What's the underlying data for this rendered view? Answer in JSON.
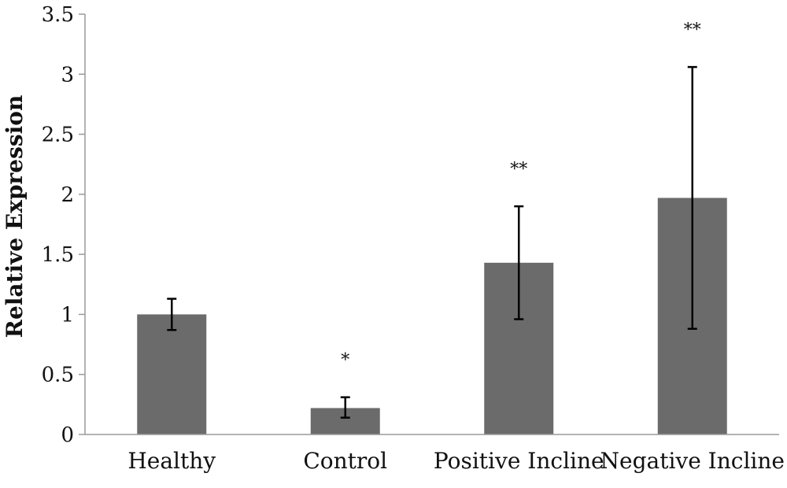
{
  "chart_data": {
    "type": "bar",
    "title": "",
    "xlabel": "",
    "ylabel": "Relative Expression",
    "ylim": [
      0,
      3.5
    ],
    "yticks": [
      0,
      0.5,
      1,
      1.5,
      2,
      2.5,
      3,
      3.5
    ],
    "ytick_labels": [
      "0",
      "0.5",
      "1",
      "1.5",
      "2",
      "2.5",
      "3",
      "3.5"
    ],
    "categories": [
      "Healthy",
      "Control",
      "Positive Incline",
      "Negative Incline"
    ],
    "values": [
      1.0,
      0.22,
      1.43,
      1.97
    ],
    "error_low": [
      0.87,
      0.14,
      0.96,
      0.88
    ],
    "error_high": [
      1.13,
      0.31,
      1.9,
      3.06
    ],
    "significance": [
      "",
      "*",
      "**",
      "**"
    ],
    "bar_color": "#6b6b6b",
    "grid": false,
    "legend": false
  }
}
